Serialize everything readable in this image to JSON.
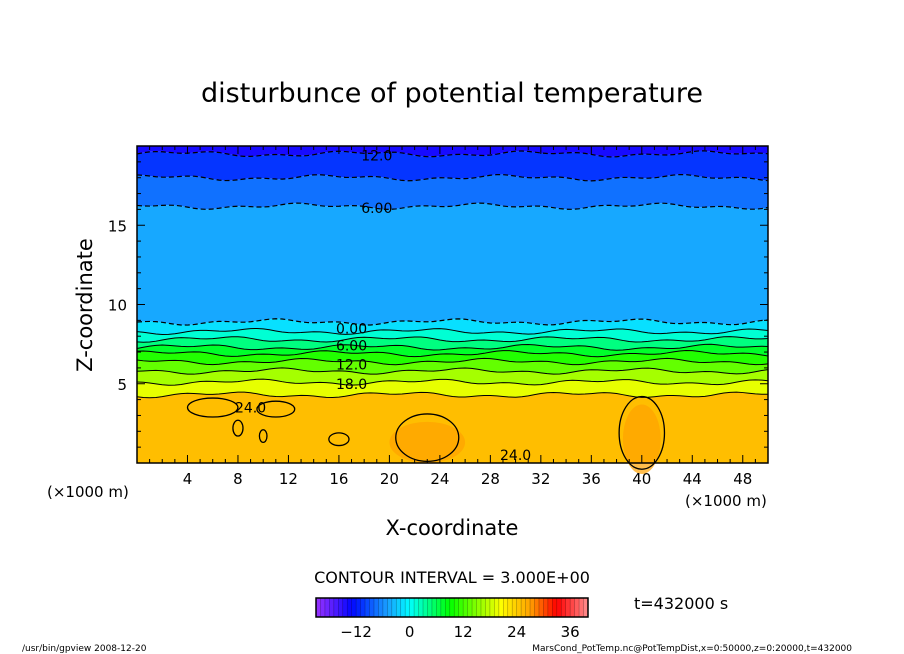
{
  "chart_data": {
    "type": "heatmap",
    "subtype": "filled-contour",
    "title": "disturbunce of potential temperature",
    "xlabel": "X-coordinate",
    "ylabel": "Z-coordinate",
    "x_unit_left": "(×1000 m)",
    "x_unit_right": "(×1000 m)",
    "xlim": [
      0,
      50
    ],
    "ylim": [
      0,
      20
    ],
    "xticks": [
      4,
      8,
      12,
      16,
      20,
      24,
      28,
      32,
      36,
      40,
      44,
      48
    ],
    "yticks": [
      5,
      10,
      15
    ],
    "contour_interval_text": "CONTOUR INTERVAL = 3.000E+00",
    "time_text": "t=432000 s",
    "contour_levels": [
      {
        "value": -12,
        "z": 19.5,
        "dashed": true
      },
      {
        "value": -9,
        "z": 18.0,
        "dashed": true
      },
      {
        "value": -6,
        "z": 16.2,
        "dashed": true
      },
      {
        "value": -3,
        "z": 8.9,
        "dashed": true
      },
      {
        "value": 0,
        "z": 8.3,
        "dashed": false
      },
      {
        "value": 3,
        "z": 7.8,
        "dashed": false
      },
      {
        "value": 6,
        "z": 7.3,
        "dashed": false
      },
      {
        "value": 9,
        "z": 6.9,
        "dashed": false
      },
      {
        "value": 12,
        "z": 6.4,
        "dashed": false
      },
      {
        "value": 15,
        "z": 5.8,
        "dashed": false
      },
      {
        "value": 18,
        "z": 5.1,
        "dashed": false
      },
      {
        "value": 21,
        "z": 4.3,
        "dashed": false
      }
    ],
    "top_value": -14,
    "bottom_value": 25,
    "contour_labels": [
      {
        "text": "12.0",
        "x": 19,
        "z": 19.4
      },
      {
        "text": "6.00",
        "x": 19,
        "z": 16.1
      },
      {
        "text": "0.00",
        "x": 17,
        "z": 8.5
      },
      {
        "text": "6.00",
        "x": 17,
        "z": 7.4
      },
      {
        "text": "12.0",
        "x": 17,
        "z": 6.2
      },
      {
        "text": "18.0",
        "x": 17,
        "z": 5.0
      },
      {
        "text": "24.0",
        "x": 9,
        "z": 3.5
      },
      {
        "text": "24.0",
        "x": 30,
        "z": 0.5
      }
    ],
    "colorbar": {
      "range": [
        -21,
        40
      ],
      "tick_values": [
        -12,
        0,
        12,
        24,
        36
      ],
      "tick_labels": [
        "−12",
        "0",
        "12",
        "24",
        "36"
      ]
    }
  },
  "footer": {
    "left": "/usr/bin/gpview   2008-12-20",
    "right": "MarsCond_PotTemp.nc@PotTempDist,x=0:50000,z=0:20000,t=432000"
  }
}
